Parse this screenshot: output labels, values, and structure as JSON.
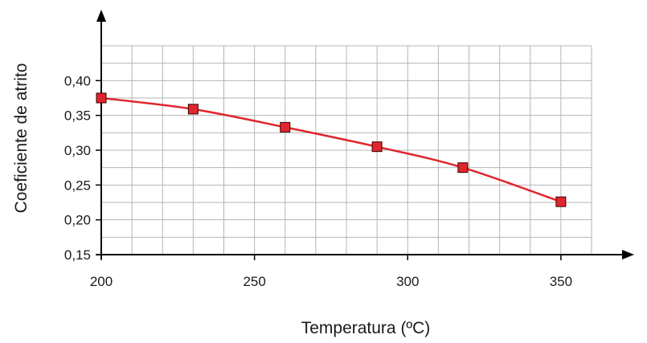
{
  "chart_data": {
    "type": "line",
    "title": "",
    "xlabel": "Temperatura (ºC)",
    "ylabel": "Coeficiente de atrito",
    "xlim": [
      200,
      360
    ],
    "ylim": [
      0.15,
      0.45
    ],
    "x_ticks": [
      200,
      250,
      300,
      350
    ],
    "x_tick_labels": [
      "200",
      "250",
      "300",
      "350"
    ],
    "y_ticks": [
      0.15,
      0.2,
      0.25,
      0.3,
      0.35,
      0.4
    ],
    "y_tick_labels": [
      "0,15",
      "0,20",
      "0,25",
      "0,30",
      "0,35",
      "0,40"
    ],
    "grid": true,
    "x_grid_step": 10,
    "y_grid_step": 0.025,
    "series": [
      {
        "color": "#e0262d",
        "x": [
          200,
          230,
          260,
          290,
          318,
          350
        ],
        "y": [
          0.375,
          0.359,
          0.333,
          0.305,
          0.275,
          0.226
        ]
      }
    ]
  }
}
